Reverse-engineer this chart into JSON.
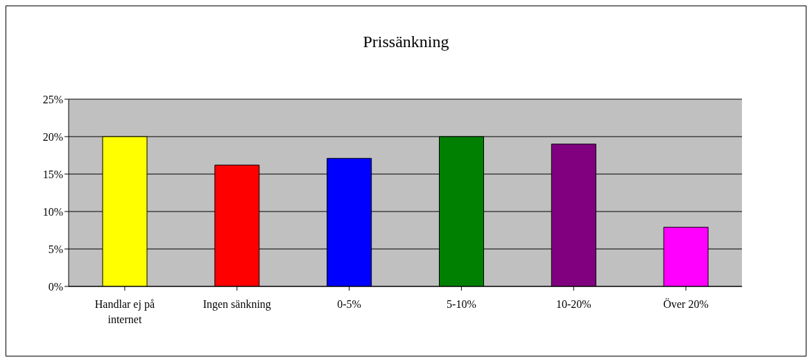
{
  "chart_data": {
    "type": "bar",
    "title": "Prissänkning",
    "categories": [
      "Handlar ej på internet",
      "Ingen sänkning",
      "0-5%",
      "5-10%",
      "10-20%",
      "Över 20%"
    ],
    "values": [
      20,
      16.2,
      17.1,
      20,
      19,
      7.9
    ],
    "colors": [
      "#ffff00",
      "#ff0000",
      "#0000ff",
      "#008000",
      "#800080",
      "#ff00ff"
    ],
    "ylim": [
      0,
      25
    ],
    "yticks": [
      {
        "value": 0,
        "label": "0%"
      },
      {
        "value": 5,
        "label": "5%"
      },
      {
        "value": 10,
        "label": "10%"
      },
      {
        "value": 15,
        "label": "15%"
      },
      {
        "value": 20,
        "label": "20%"
      },
      {
        "value": 25,
        "label": "25%"
      }
    ],
    "grid": "y"
  }
}
